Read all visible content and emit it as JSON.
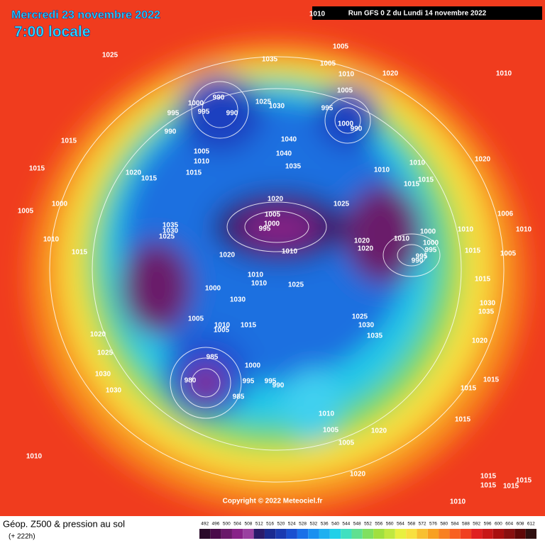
{
  "header": {
    "date": "Mercredi 23 novembre 2022",
    "time": "7:00 locale",
    "run": "Run GFS 0 Z du Lundi 14 novembre 2022"
  },
  "map": {
    "isobar_labels": [
      "1010",
      "1025",
      "1035",
      "1005",
      "1005",
      "1010",
      "1020",
      "1010",
      "1005",
      "990",
      "1000",
      "995",
      "990",
      "1025",
      "1030",
      "995",
      "1000",
      "990",
      "995",
      "990",
      "1015",
      "1040",
      "1005",
      "1010",
      "1040",
      "1035",
      "1015",
      "1020",
      "1015",
      "1015",
      "1010",
      "1010",
      "1015",
      "1015",
      "1020",
      "1005",
      "1000",
      "1020",
      "1025",
      "1035",
      "1030",
      "1025",
      "1005",
      "1000",
      "995",
      "1010",
      "1010",
      "1020",
      "1020",
      "1010",
      "1000",
      "1000",
      "995",
      "995",
      "990",
      "1010",
      "1006",
      "1010",
      "1015",
      "1020",
      "1015",
      "1005",
      "1010",
      "1010",
      "1025",
      "1015",
      "1000",
      "1030",
      "1035",
      "1005",
      "1010",
      "1005",
      "1015",
      "1030",
      "1025",
      "1030",
      "1035",
      "1020",
      "1020",
      "1025",
      "985",
      "1000",
      "1030",
      "1030",
      "980",
      "995",
      "995",
      "990",
      "985",
      "1015",
      "1015",
      "1010",
      "1005",
      "1015",
      "1020",
      "1005",
      "1010",
      "1020",
      "1015",
      "1015",
      "1015",
      "1015",
      "1010"
    ]
  },
  "footer": {
    "copyright": "Copyright © 2022 Meteociel.fr",
    "title": "Géop. Z500 & pression au sol",
    "lead": "(+ 222h)"
  },
  "scale": {
    "labels": [
      492,
      496,
      500,
      504,
      508,
      512,
      516,
      520,
      524,
      528,
      532,
      536,
      540,
      544,
      548,
      552,
      556,
      560,
      564,
      568,
      572,
      576,
      580,
      584,
      588,
      592,
      596,
      600,
      604,
      608,
      612
    ],
    "colors": [
      "#2a0a2a",
      "#4a0a4a",
      "#6a1a6a",
      "#882288",
      "#9a40a0",
      "#2a1a6a",
      "#1a2a90",
      "#1a3ab0",
      "#1a50d0",
      "#1a70e8",
      "#1a90f0",
      "#20b0f0",
      "#20d0e8",
      "#40e0c0",
      "#60e090",
      "#80e060",
      "#a0e040",
      "#c0e840",
      "#e8f040",
      "#f8e040",
      "#f8c030",
      "#f8a020",
      "#f88020",
      "#f86020",
      "#f04020",
      "#e02020",
      "#c81818",
      "#a81010",
      "#881010",
      "#600808",
      "#301010"
    ]
  }
}
